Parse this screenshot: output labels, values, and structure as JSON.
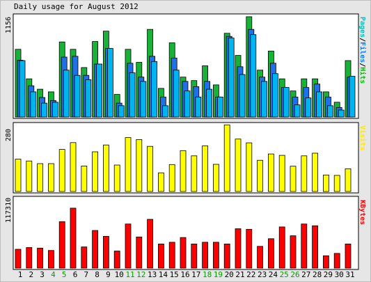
{
  "title": "Daily usage for August 2012",
  "chart_data": [
    {
      "type": "bar",
      "name": "hits-files-pages",
      "categories": [
        "1",
        "2",
        "3",
        "4",
        "5",
        "6",
        "7",
        "8",
        "9",
        "10",
        "11",
        "12",
        "13",
        "14",
        "15",
        "16",
        "17",
        "18",
        "19",
        "20",
        "21",
        "22",
        "23",
        "24",
        "25",
        "26",
        "27",
        "28",
        "29",
        "30",
        "31"
      ],
      "max_label": "1156",
      "max": 1156,
      "series_labels": [
        {
          "text": "Pages",
          "color": "#00c0c0"
        },
        {
          "text": "/",
          "color": "#000000"
        },
        {
          "text": "Files",
          "color": "#0080ff"
        },
        {
          "text": "/",
          "color": "#000000"
        },
        {
          "text": "Hits",
          "color": "#00c000"
        }
      ],
      "series": [
        {
          "key": "hits",
          "color": "#18b238",
          "values": [
            780,
            440,
            320,
            290,
            865,
            780,
            570,
            870,
            990,
            260,
            780,
            630,
            1010,
            330,
            855,
            460,
            420,
            590,
            370,
            965,
            710,
            1156,
            540,
            760,
            440,
            300,
            440,
            440,
            290,
            170,
            650
          ]
        },
        {
          "key": "files",
          "color": "#2070e8",
          "values": [
            655,
            360,
            225,
            190,
            690,
            700,
            480,
            610,
            790,
            160,
            620,
            460,
            700,
            230,
            680,
            410,
            350,
            410,
            230,
            930,
            580,
            1010,
            460,
            620,
            340,
            230,
            340,
            380,
            230,
            110,
            460
          ]
        },
        {
          "key": "pages",
          "color": "#00b4f0",
          "values": [
            650,
            290,
            160,
            170,
            540,
            480,
            430,
            610,
            790,
            130,
            510,
            410,
            640,
            130,
            540,
            300,
            230,
            320,
            230,
            910,
            490,
            950,
            410,
            500,
            340,
            140,
            220,
            290,
            130,
            80,
            470
          ]
        }
      ]
    },
    {
      "type": "bar",
      "name": "visits",
      "categories": [
        "1",
        "2",
        "3",
        "4",
        "5",
        "6",
        "7",
        "8",
        "9",
        "10",
        "11",
        "12",
        "13",
        "14",
        "15",
        "16",
        "17",
        "18",
        "19",
        "20",
        "21",
        "22",
        "23",
        "24",
        "25",
        "26",
        "27",
        "28",
        "29",
        "30",
        "31"
      ],
      "max_label": "280",
      "max": 280,
      "series_labels": [
        {
          "text": "Visits",
          "color": "#ffea00"
        }
      ],
      "series": [
        {
          "key": "visits",
          "color": "#ffff00",
          "values": [
            137,
            129,
            118,
            118,
            178,
            207,
            108,
            168,
            197,
            112,
            228,
            220,
            191,
            79,
            114,
            173,
            151,
            193,
            115,
            282,
            222,
            206,
            132,
            159,
            153,
            107,
            151,
            162,
            70,
            68,
            96
          ]
        }
      ]
    },
    {
      "type": "bar",
      "name": "kbytes",
      "categories": [
        "1",
        "2",
        "3",
        "4",
        "5",
        "6",
        "7",
        "8",
        "9",
        "10",
        "11",
        "12",
        "13",
        "14",
        "15",
        "16",
        "17",
        "18",
        "19",
        "20",
        "21",
        "22",
        "23",
        "24",
        "25",
        "26",
        "27",
        "28",
        "29",
        "30",
        "31"
      ],
      "max_label": "117310",
      "max": 117310,
      "series_labels": [
        {
          "text": "KBytes",
          "color": "#ff0000"
        }
      ],
      "series": [
        {
          "key": "kbytes",
          "color": "#ff0000",
          "values": [
            32000,
            35000,
            34000,
            30000,
            79000,
            102000,
            36000,
            64000,
            54000,
            29000,
            75000,
            53000,
            83000,
            41000,
            44000,
            52000,
            41000,
            44000,
            44000,
            41000,
            67000,
            66000,
            37000,
            50000,
            70000,
            55000,
            75000,
            72000,
            21000,
            25000,
            41000
          ]
        }
      ]
    }
  ],
  "days": [
    {
      "label": "1",
      "weekend": false
    },
    {
      "label": "2",
      "weekend": false
    },
    {
      "label": "3",
      "weekend": false
    },
    {
      "label": "4",
      "weekend": true
    },
    {
      "label": "5",
      "weekend": true
    },
    {
      "label": "6",
      "weekend": false
    },
    {
      "label": "7",
      "weekend": false
    },
    {
      "label": "8",
      "weekend": false
    },
    {
      "label": "9",
      "weekend": false
    },
    {
      "label": "10",
      "weekend": false
    },
    {
      "label": "11",
      "weekend": true
    },
    {
      "label": "12",
      "weekend": true
    },
    {
      "label": "13",
      "weekend": false
    },
    {
      "label": "14",
      "weekend": false
    },
    {
      "label": "15",
      "weekend": false
    },
    {
      "label": "16",
      "weekend": false
    },
    {
      "label": "17",
      "weekend": false
    },
    {
      "label": "18",
      "weekend": true
    },
    {
      "label": "19",
      "weekend": true
    },
    {
      "label": "20",
      "weekend": false
    },
    {
      "label": "21",
      "weekend": false
    },
    {
      "label": "22",
      "weekend": false
    },
    {
      "label": "23",
      "weekend": false
    },
    {
      "label": "24",
      "weekend": false
    },
    {
      "label": "25",
      "weekend": true
    },
    {
      "label": "26",
      "weekend": true
    },
    {
      "label": "27",
      "weekend": false
    },
    {
      "label": "28",
      "weekend": false
    },
    {
      "label": "29",
      "weekend": false
    },
    {
      "label": "30",
      "weekend": false
    },
    {
      "label": "31",
      "weekend": false
    }
  ],
  "colors": {
    "weekday_label": "#000000",
    "weekend_label": "#00a000",
    "background": "#e6e6e6",
    "panel": "#ffffff"
  }
}
